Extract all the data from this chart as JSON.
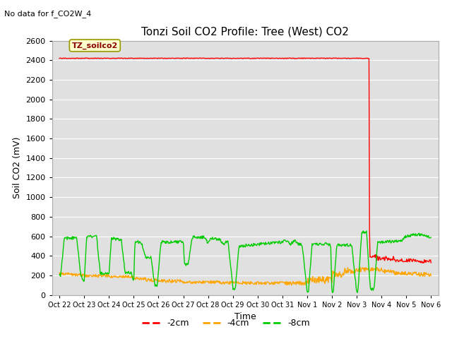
{
  "title": "Tonzi Soil CO2 Profile: Tree (West) CO2",
  "no_data_text": "No data for f_CO2W_4",
  "ylabel": "Soil CO2 (mV)",
  "xlabel": "Time",
  "ylim": [
    0,
    2600
  ],
  "yticks": [
    0,
    200,
    400,
    600,
    800,
    1000,
    1200,
    1400,
    1600,
    1800,
    2000,
    2200,
    2400,
    2600
  ],
  "xtick_labels": [
    "Oct 22",
    "Oct 23",
    "Oct 24",
    "Oct 25",
    "Oct 26",
    "Oct 27",
    "Oct 28",
    "Oct 29",
    "Oct 30",
    "Oct 31",
    "Nov 1",
    "Nov 2",
    "Nov 3",
    "Nov 4",
    "Nov 5",
    "Nov 6"
  ],
  "xtick_positions": [
    0,
    1,
    2,
    3,
    4,
    5,
    6,
    7,
    8,
    9,
    10,
    11,
    12,
    13,
    14,
    15
  ],
  "xlim": [
    -0.3,
    15.3
  ],
  "bg_color": "#e0e0e0",
  "grid_color": "#ffffff",
  "legend_label_2cm": "-2cm",
  "legend_label_4cm": "-4cm",
  "legend_label_8cm": "-8cm",
  "color_2cm": "#ff0000",
  "color_4cm": "#ffa500",
  "color_8cm": "#00cc00",
  "legend_box_color": "#ffffcc",
  "legend_box_edge": "#999900",
  "tz_label": "TZ_soilco2",
  "title_fontsize": 11,
  "label_fontsize": 9,
  "tick_fontsize": 8
}
